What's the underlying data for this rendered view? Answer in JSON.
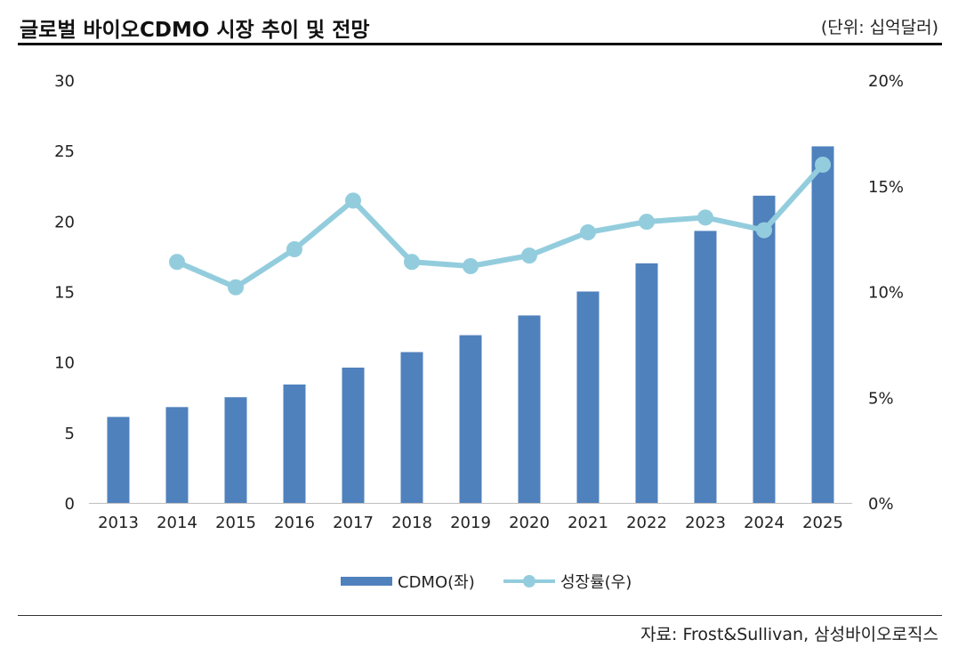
{
  "header": {
    "title": "글로벌 바이오CDMO 시장 추이 및 전망",
    "unit": "(단위: 십억달러)"
  },
  "source": "자료: Frost&Sullivan, 삼성바이오로직스",
  "colors": {
    "bar": "#4f81bd",
    "line": "#93cddd",
    "text": "#222222"
  },
  "chart_data": {
    "type": "bar",
    "title": "글로벌 바이오CDMO 시장 추이 및 전망",
    "categories": [
      "2013",
      "2014",
      "2015",
      "2016",
      "2017",
      "2018",
      "2019",
      "2020",
      "2021",
      "2022",
      "2023",
      "2024",
      "2025"
    ],
    "series": [
      {
        "name": "CDMO(좌)",
        "type": "bar",
        "axis": "left",
        "values": [
          6.1,
          6.8,
          7.5,
          8.4,
          9.6,
          10.7,
          11.9,
          13.3,
          15.0,
          17.0,
          19.3,
          21.8,
          25.3
        ]
      },
      {
        "name": "성장률(우)",
        "type": "line",
        "axis": "right",
        "values": [
          null,
          11.4,
          10.2,
          12.0,
          14.3,
          11.4,
          11.2,
          11.7,
          12.8,
          13.3,
          13.5,
          12.9,
          16.0
        ]
      }
    ],
    "left_axis": {
      "ylim": [
        0,
        30
      ],
      "ticks": [
        "0",
        "5",
        "10",
        "15",
        "20",
        "25",
        "30"
      ]
    },
    "right_axis": {
      "ylim": [
        0,
        20
      ],
      "ticks": [
        "0%",
        "5%",
        "10%",
        "15%",
        "20%"
      ]
    },
    "legend_position": "bottom-center"
  }
}
